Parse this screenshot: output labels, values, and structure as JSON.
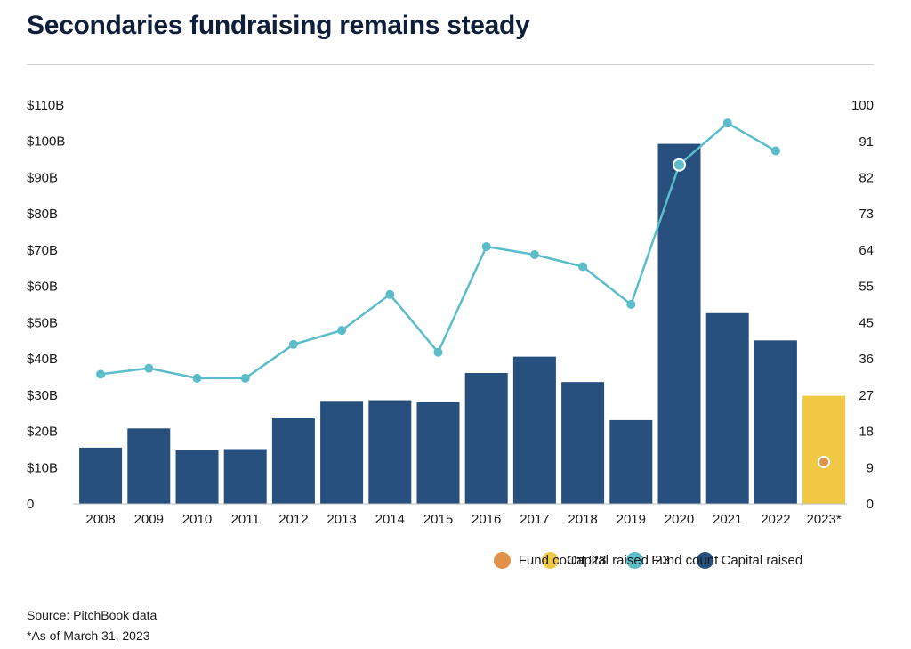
{
  "title": "Secondaries fundraising remains steady",
  "source": "Source: PitchBook data",
  "note": "*As of March 31, 2023",
  "colors": {
    "capital": "#27507e",
    "fund": "#5bbcca",
    "capital23": "#f0c843",
    "fund23": "#e0924a"
  },
  "chart_data": {
    "type": "bar",
    "categories": [
      "2008",
      "2009",
      "2010",
      "2011",
      "2012",
      "2013",
      "2014",
      "2015",
      "2016",
      "2017",
      "2018",
      "2019",
      "2020",
      "2021",
      "2022",
      "2023*"
    ],
    "series": [
      {
        "name": "Capital raised",
        "axis": "left",
        "type": "bar",
        "values": [
          15.5,
          20.8,
          14.8,
          15.1,
          23.8,
          28.4,
          28.6,
          28.1,
          36.1,
          40.6,
          33.6,
          23.1,
          99.3,
          52.6,
          45.1,
          null
        ]
      },
      {
        "name": "Fund count",
        "axis": "right",
        "type": "line",
        "values": [
          32.5,
          34,
          31.5,
          31.5,
          40,
          43.5,
          52.5,
          38,
          64.5,
          62.5,
          59.5,
          50,
          85,
          95.5,
          88.5,
          null
        ]
      },
      {
        "name": "Capital raised '23",
        "axis": "left",
        "type": "bar",
        "values": [
          null,
          null,
          null,
          null,
          null,
          null,
          null,
          null,
          null,
          null,
          null,
          null,
          null,
          null,
          null,
          29.8
        ]
      },
      {
        "name": "Fund count '23",
        "axis": "right",
        "type": "point",
        "values": [
          null,
          null,
          null,
          null,
          null,
          null,
          null,
          null,
          null,
          null,
          null,
          null,
          null,
          null,
          null,
          10.5
        ]
      }
    ],
    "left_ticks": [
      "0",
      "$10B",
      "$20B",
      "$30B",
      "$40B",
      "$50B",
      "$60B",
      "$70B",
      "$80B",
      "$90B",
      "$100B",
      "$110B"
    ],
    "right_ticks": [
      "0",
      "9",
      "18",
      "27",
      "36",
      "45",
      "55",
      "64",
      "73",
      "82",
      "91",
      "100"
    ],
    "ylim_left": [
      0,
      110
    ],
    "ylim_right": [
      0,
      100
    ],
    "legend": [
      "Capital raised",
      "Fund count",
      "Capital raised '23",
      "Fund count '23"
    ],
    "legend_position": "bottom",
    "grid": false
  }
}
